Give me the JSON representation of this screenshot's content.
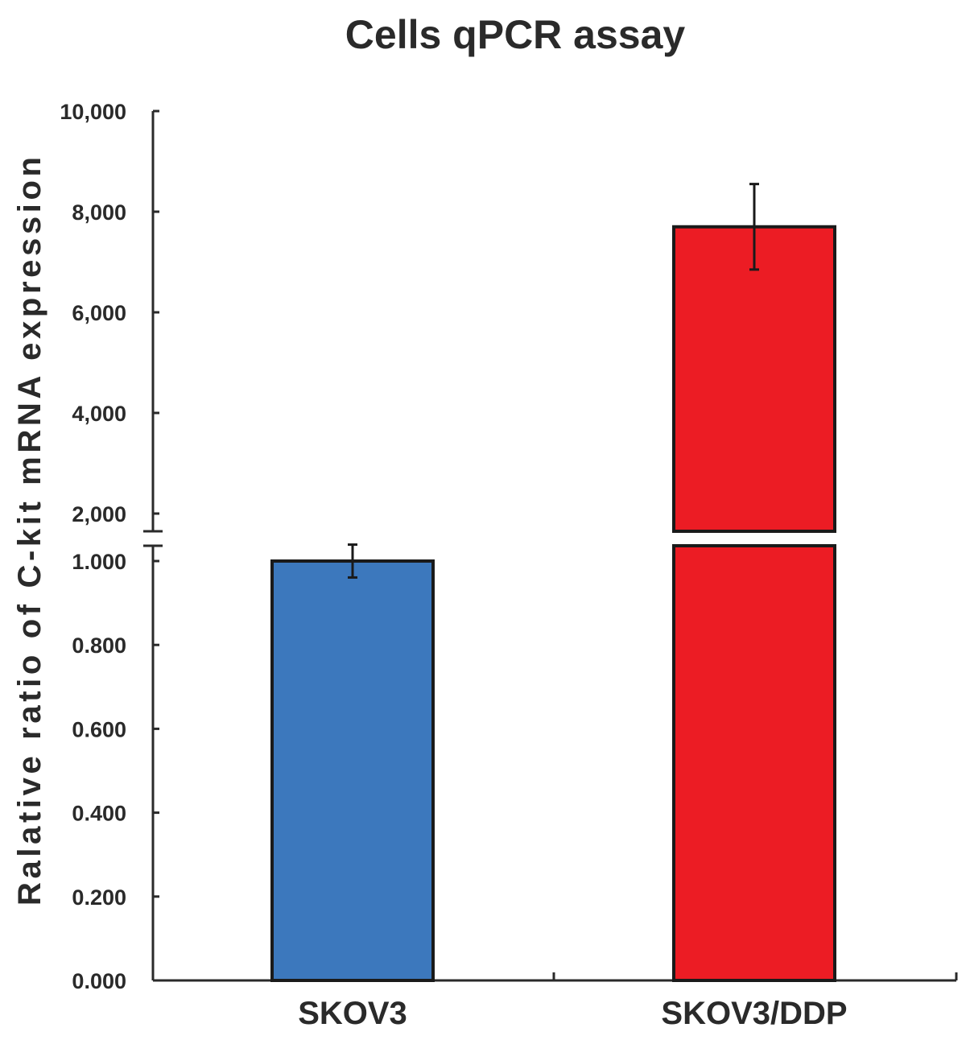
{
  "chart_data": {
    "type": "bar",
    "title": "Cells qPCR assay",
    "xlabel": "",
    "ylabel": "Ralative ratio of C-kit mRNA expression",
    "categories": [
      "SKOV3",
      "SKOV3/DDP"
    ],
    "series": [
      {
        "values": [
          1.0,
          7700
        ],
        "errors": [
          0.02,
          850
        ],
        "colors": [
          "#3c78bd",
          "#ec1c24"
        ]
      }
    ],
    "y_axis_broken": true,
    "y_lower_segment": {
      "range": [
        0,
        1
      ],
      "ticks": [
        "0.000",
        "0.200",
        "0.400",
        "0.600",
        "0.800",
        "1.000"
      ],
      "tick_values": [
        0,
        0.2,
        0.4,
        0.6,
        0.8,
        1.0
      ]
    },
    "y_upper_segment": {
      "range": [
        1700,
        10000
      ],
      "ticks": [
        "2,000",
        "4,000",
        "6,000",
        "8,000",
        "10,000"
      ],
      "tick_values": [
        2000,
        4000,
        6000,
        8000,
        10000
      ]
    },
    "grid": false,
    "legend": "none"
  }
}
